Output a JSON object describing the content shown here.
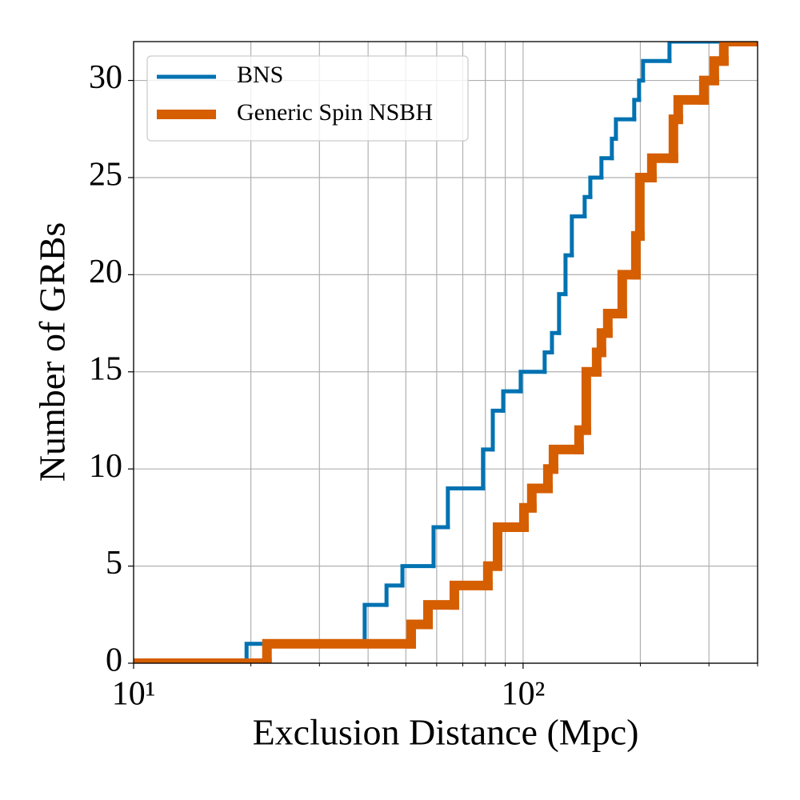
{
  "chart_data": {
    "type": "step",
    "xlabel": "Exclusion Distance (Mpc)",
    "ylabel": "Number of GRBs",
    "xscale": "log",
    "xlim": [
      10,
      400
    ],
    "ylim": [
      0,
      32
    ],
    "xticks": [
      {
        "value": 10,
        "label": "10¹"
      },
      {
        "value": 100,
        "label": "10²"
      }
    ],
    "xminorticks": [
      20,
      30,
      40,
      50,
      60,
      70,
      80,
      90,
      200,
      300,
      400
    ],
    "yticks": [
      0,
      5,
      10,
      15,
      20,
      25,
      30
    ],
    "grid": true,
    "legend": "upper left",
    "series": [
      {
        "name": "BNS",
        "color": "#0072b2",
        "width": 5,
        "x": [
          10,
          19.5,
          39.2,
          44.6,
          49,
          58.9,
          64.1,
          78.9,
          83.6,
          88.9,
          98.6,
          113.6,
          118.6,
          123.7,
          128.5,
          133.4,
          143.9,
          148.8,
          158.9,
          169,
          173.1,
          192.9,
          198.5,
          203.2,
          237.6,
          400
        ],
        "values": [
          0,
          1,
          3,
          4,
          5,
          7,
          9,
          11,
          13,
          14,
          15,
          16,
          17,
          19,
          21,
          23,
          24,
          25,
          26,
          27,
          28,
          29,
          30,
          31,
          32,
          32
        ]
      },
      {
        "name": "Generic Spin NSBH",
        "color": "#d55e00",
        "width": 12,
        "x": [
          10,
          22,
          51.6,
          57,
          66.6,
          81.2,
          86,
          100.5,
          105.3,
          115.8,
          119.7,
          139.2,
          145.3,
          154.5,
          158.9,
          165,
          179.7,
          194.8,
          199.4,
          214.1,
          243.2,
          250.2,
          291.2,
          309.6,
          327.6,
          400
        ],
        "values": [
          0,
          1,
          2,
          3,
          4,
          5,
          7,
          8,
          9,
          10,
          11,
          12,
          15,
          16,
          17,
          18,
          20,
          22,
          25,
          26,
          28,
          29,
          30,
          31,
          32,
          32
        ]
      }
    ]
  }
}
